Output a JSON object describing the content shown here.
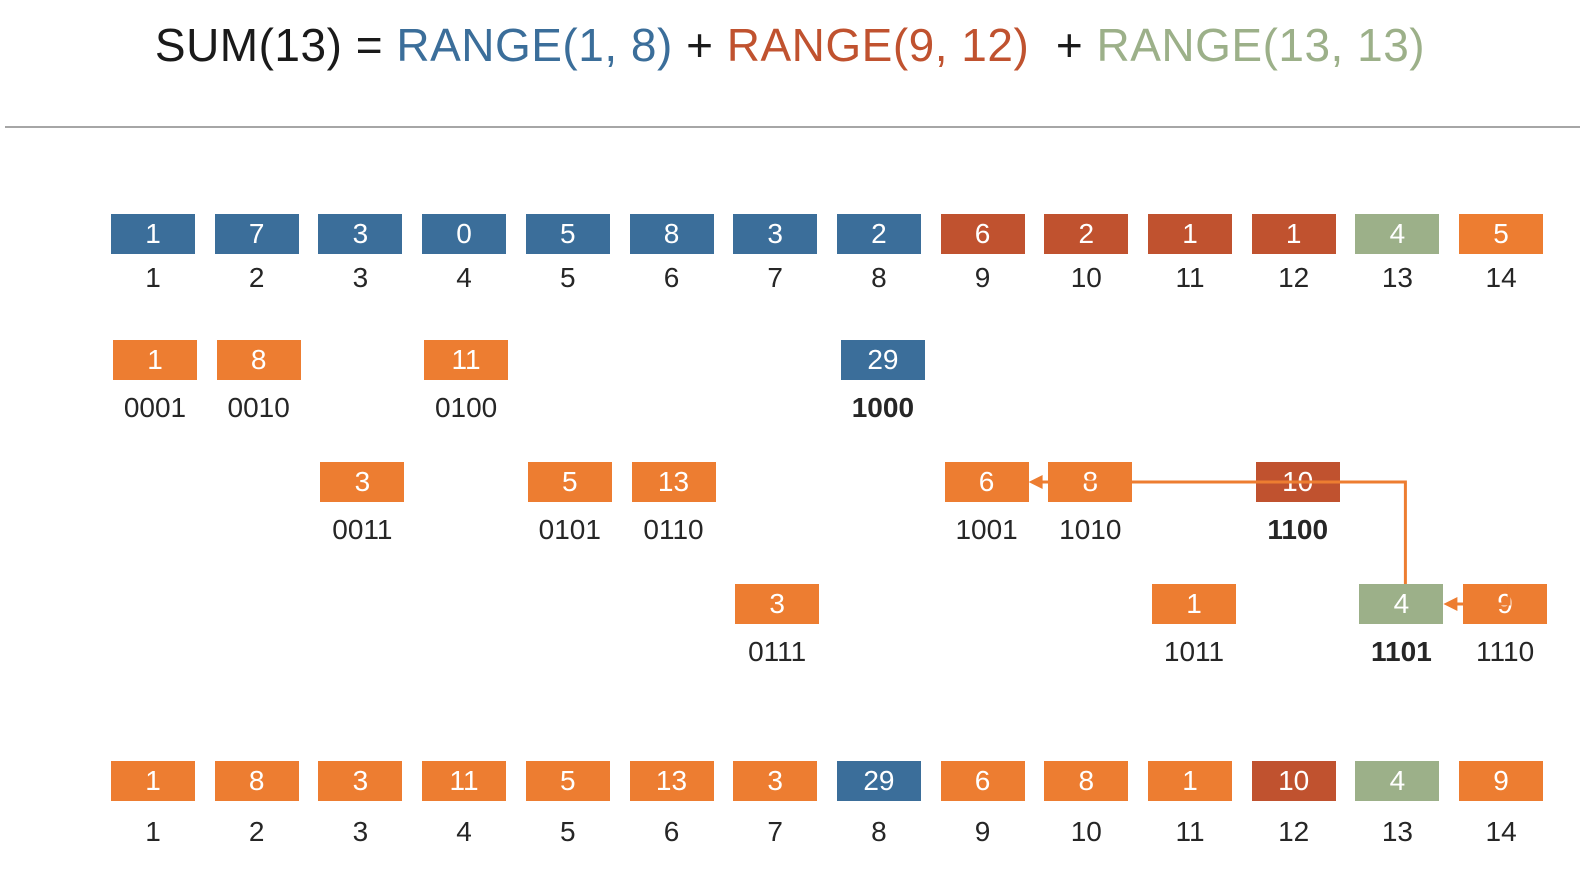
{
  "colors": {
    "blue": "#3b6e9a",
    "red": "#c0522f",
    "green": "#9cb089",
    "orange": "#ed7d31",
    "black": "#1a1a1a"
  },
  "formula": {
    "prefix": "SUM(13) = ",
    "range1": "RANGE(1, 8)",
    "plus1": " + ",
    "range2": "RANGE(9, 12)",
    "plus2": "  + ",
    "range3": "RANGE(13, 13)"
  },
  "input_array": {
    "values": [
      "1",
      "7",
      "3",
      "0",
      "5",
      "8",
      "3",
      "2",
      "6",
      "2",
      "1",
      "1",
      "4",
      "5"
    ],
    "colors": [
      "blue",
      "blue",
      "blue",
      "blue",
      "blue",
      "blue",
      "blue",
      "blue",
      "red",
      "red",
      "red",
      "red",
      "green",
      "orange"
    ],
    "indices": [
      "1",
      "2",
      "3",
      "4",
      "5",
      "6",
      "7",
      "8",
      "9",
      "10",
      "11",
      "12",
      "13",
      "14"
    ]
  },
  "tree": {
    "nodes": [
      {
        "value": "1",
        "binary": "0001",
        "color": "orange",
        "level": 0,
        "bold": false
      },
      {
        "value": "8",
        "binary": "0010",
        "color": "orange",
        "level": 0,
        "bold": false
      },
      {
        "value": "3",
        "binary": "0011",
        "color": "orange",
        "level": 1,
        "bold": false
      },
      {
        "value": "11",
        "binary": "0100",
        "color": "orange",
        "level": 0,
        "bold": false
      },
      {
        "value": "5",
        "binary": "0101",
        "color": "orange",
        "level": 1,
        "bold": false
      },
      {
        "value": "13",
        "binary": "0110",
        "color": "orange",
        "level": 1,
        "bold": false
      },
      {
        "value": "3",
        "binary": "0111",
        "color": "orange",
        "level": 2,
        "bold": false
      },
      {
        "value": "29",
        "binary": "1000",
        "color": "blue",
        "level": 0,
        "bold": true
      },
      {
        "value": "6",
        "binary": "1001",
        "color": "orange",
        "level": 1,
        "bold": false
      },
      {
        "value": "8",
        "binary": "1010",
        "color": "orange",
        "level": 1,
        "bold": false
      },
      {
        "value": "1",
        "binary": "1011",
        "color": "orange",
        "level": 2,
        "bold": false
      },
      {
        "value": "10",
        "binary": "1100",
        "color": "red",
        "level": 1,
        "bold": true
      },
      {
        "value": "4",
        "binary": "1101",
        "color": "green",
        "level": 2,
        "bold": true
      },
      {
        "value": "9",
        "binary": "1110",
        "color": "orange",
        "level": 2,
        "bold": false
      }
    ],
    "arrows": [
      {
        "from": 13,
        "to": 12
      },
      {
        "from": 12,
        "to": 8
      }
    ]
  },
  "fenwick_array": {
    "values": [
      "1",
      "8",
      "3",
      "11",
      "5",
      "13",
      "3",
      "29",
      "6",
      "8",
      "1",
      "10",
      "4",
      "9"
    ],
    "colors": [
      "orange",
      "orange",
      "orange",
      "orange",
      "orange",
      "orange",
      "orange",
      "blue",
      "orange",
      "orange",
      "orange",
      "red",
      "green",
      "orange"
    ],
    "indices": [
      "1",
      "2",
      "3",
      "4",
      "5",
      "6",
      "7",
      "8",
      "9",
      "10",
      "11",
      "12",
      "13",
      "14"
    ]
  }
}
